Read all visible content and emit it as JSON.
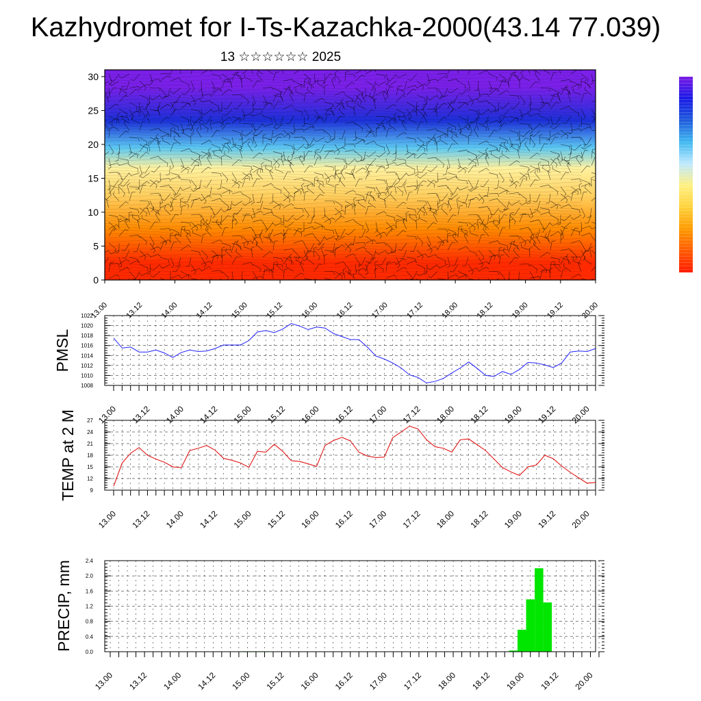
{
  "title": "Kazhydromet for I-Ts-Kazachka-2000(43.14 77.039)",
  "subtitle": "13 ☆☆☆☆☆☆ 2025",
  "colors": {
    "pmsl_line": "#1f1fff",
    "temp_line": "#e00000",
    "precip_bar": "#00e600",
    "wind_barb": "#000000"
  },
  "chart_data": [
    {
      "type": "heatmap",
      "name_hint": "wind-profile",
      "x_ticks": [
        "13.00",
        "13.12",
        "14.00",
        "14.12",
        "15.00",
        "15.12",
        "16.00",
        "16.12",
        "17.00",
        "17.12",
        "18.00",
        "18.12",
        "19.00",
        "19.12",
        "20.00"
      ],
      "y_ticks": [
        "0",
        "5",
        "10",
        "15",
        "20",
        "25",
        "30"
      ],
      "ylim": [
        0,
        31
      ],
      "colorbar": [
        "#ff1a00",
        "#ff5a00",
        "#ff9a00",
        "#ffd23a",
        "#fff080",
        "#bfe9ff",
        "#40b8f0",
        "#1e5adc",
        "#1a1ae6",
        "#7a1ae6"
      ],
      "color_bands": [
        {
          "from": 0,
          "to": 5,
          "color": "#ff2a00"
        },
        {
          "from": 5,
          "to": 10,
          "color": "#ff8a00"
        },
        {
          "from": 10,
          "to": 15,
          "color": "#ffd060"
        },
        {
          "from": 15,
          "to": 18,
          "color": "#fff2a0"
        },
        {
          "from": 18,
          "to": 21,
          "color": "#5cc8f2"
        },
        {
          "from": 21,
          "to": 26,
          "color": "#1c30d8"
        },
        {
          "from": 26,
          "to": 31,
          "color": "#7a20e8"
        }
      ]
    },
    {
      "type": "line",
      "ylabel": "PMSL",
      "ylim": [
        1008,
        1022
      ],
      "y_ticks": [
        "1008",
        "1010",
        "1012",
        "1014",
        "1016",
        "1018",
        "1020",
        "1022"
      ],
      "x_ticks": [
        "13.00",
        "13.12",
        "14.00",
        "14.12",
        "15.00",
        "15.12",
        "16.00",
        "16.12",
        "17.00",
        "17.12",
        "18.00",
        "18.12",
        "19.00",
        "19.12",
        "20.00"
      ],
      "series": [
        {
          "values": [
            1017.5,
            1015.5,
            1015.7,
            1014.7,
            1014.7,
            1015.1,
            1014.5,
            1013.6,
            1014.6,
            1015.1,
            1014.8,
            1014.9,
            1015.4,
            1016.1,
            1016.1,
            1016.1,
            1017.0,
            1018.7,
            1019.0,
            1018.6,
            1019.3,
            1020.4,
            1019.9,
            1019.2,
            1019.7,
            1019.5,
            1018.4,
            1017.8,
            1017.2,
            1017.2,
            1015.7,
            1013.9,
            1013.3,
            1012.5,
            1011.5,
            1010.1,
            1009.6,
            1008.5,
            1008.8,
            1009.4,
            1010.5,
            1011.5,
            1012.7,
            1011.4,
            1010.0,
            1009.8,
            1010.8,
            1010.2,
            1011.2,
            1012.6,
            1012.5,
            1012.1,
            1011.6,
            1012.5,
            1014.7,
            1014.9,
            1014.8,
            1015.4
          ]
        }
      ]
    },
    {
      "type": "line",
      "ylabel": "TEMP at 2 M",
      "ylim": [
        9,
        27
      ],
      "y_ticks": [
        "9",
        "12",
        "15",
        "18",
        "21",
        "24",
        "27"
      ],
      "x_ticks": [
        "13.00",
        "13.12",
        "14.00",
        "14.12",
        "15.00",
        "15.12",
        "16.00",
        "16.12",
        "17.00",
        "17.12",
        "18.00",
        "18.12",
        "19.00",
        "19.12",
        "20.00"
      ],
      "series": [
        {
          "values": [
            10.0,
            16.0,
            18.5,
            20.0,
            18.0,
            17.0,
            16.2,
            15.0,
            14.8,
            19.2,
            19.8,
            20.5,
            19.3,
            17.2,
            16.7,
            16.0,
            14.9,
            19.0,
            18.8,
            20.8,
            19.0,
            16.6,
            16.4,
            15.8,
            15.1,
            20.5,
            21.8,
            22.6,
            21.7,
            18.8,
            17.8,
            17.4,
            17.5,
            22.5,
            24.0,
            25.5,
            24.8,
            22.0,
            20.2,
            19.8,
            18.8,
            22.0,
            22.2,
            20.7,
            19.2,
            17.0,
            14.8,
            13.7,
            12.8,
            15.0,
            15.5,
            18.0,
            17.1,
            15.2,
            13.6,
            12.2,
            10.8,
            11.0
          ]
        }
      ]
    },
    {
      "type": "bar",
      "ylabel": "PRECIP, mm",
      "ylim": [
        0,
        2.4
      ],
      "y_ticks": [
        "0.0",
        "0.4",
        "0.8",
        "1.2",
        "1.6",
        "2.0",
        "2.4"
      ],
      "x_ticks": [
        "13.00",
        "13.12",
        "14.00",
        "14.12",
        "15.00",
        "15.12",
        "16.00",
        "16.12",
        "17.00",
        "17.12",
        "18.00",
        "18.12",
        "19.00",
        "19.12",
        "20.00"
      ],
      "series": [
        {
          "values": [
            0,
            0,
            0,
            0,
            0,
            0,
            0,
            0,
            0,
            0,
            0,
            0,
            0,
            0,
            0,
            0,
            0.01,
            0.01,
            0.01,
            0,
            0,
            0,
            0,
            0,
            0,
            0,
            0,
            0,
            0,
            0,
            0,
            0,
            0,
            0,
            0,
            0,
            0,
            0,
            0,
            0,
            0,
            0,
            0,
            0,
            0,
            0,
            0,
            0.03,
            0.58,
            1.38,
            2.2,
            1.3,
            0,
            0,
            0,
            0,
            0,
            0
          ]
        }
      ]
    }
  ]
}
